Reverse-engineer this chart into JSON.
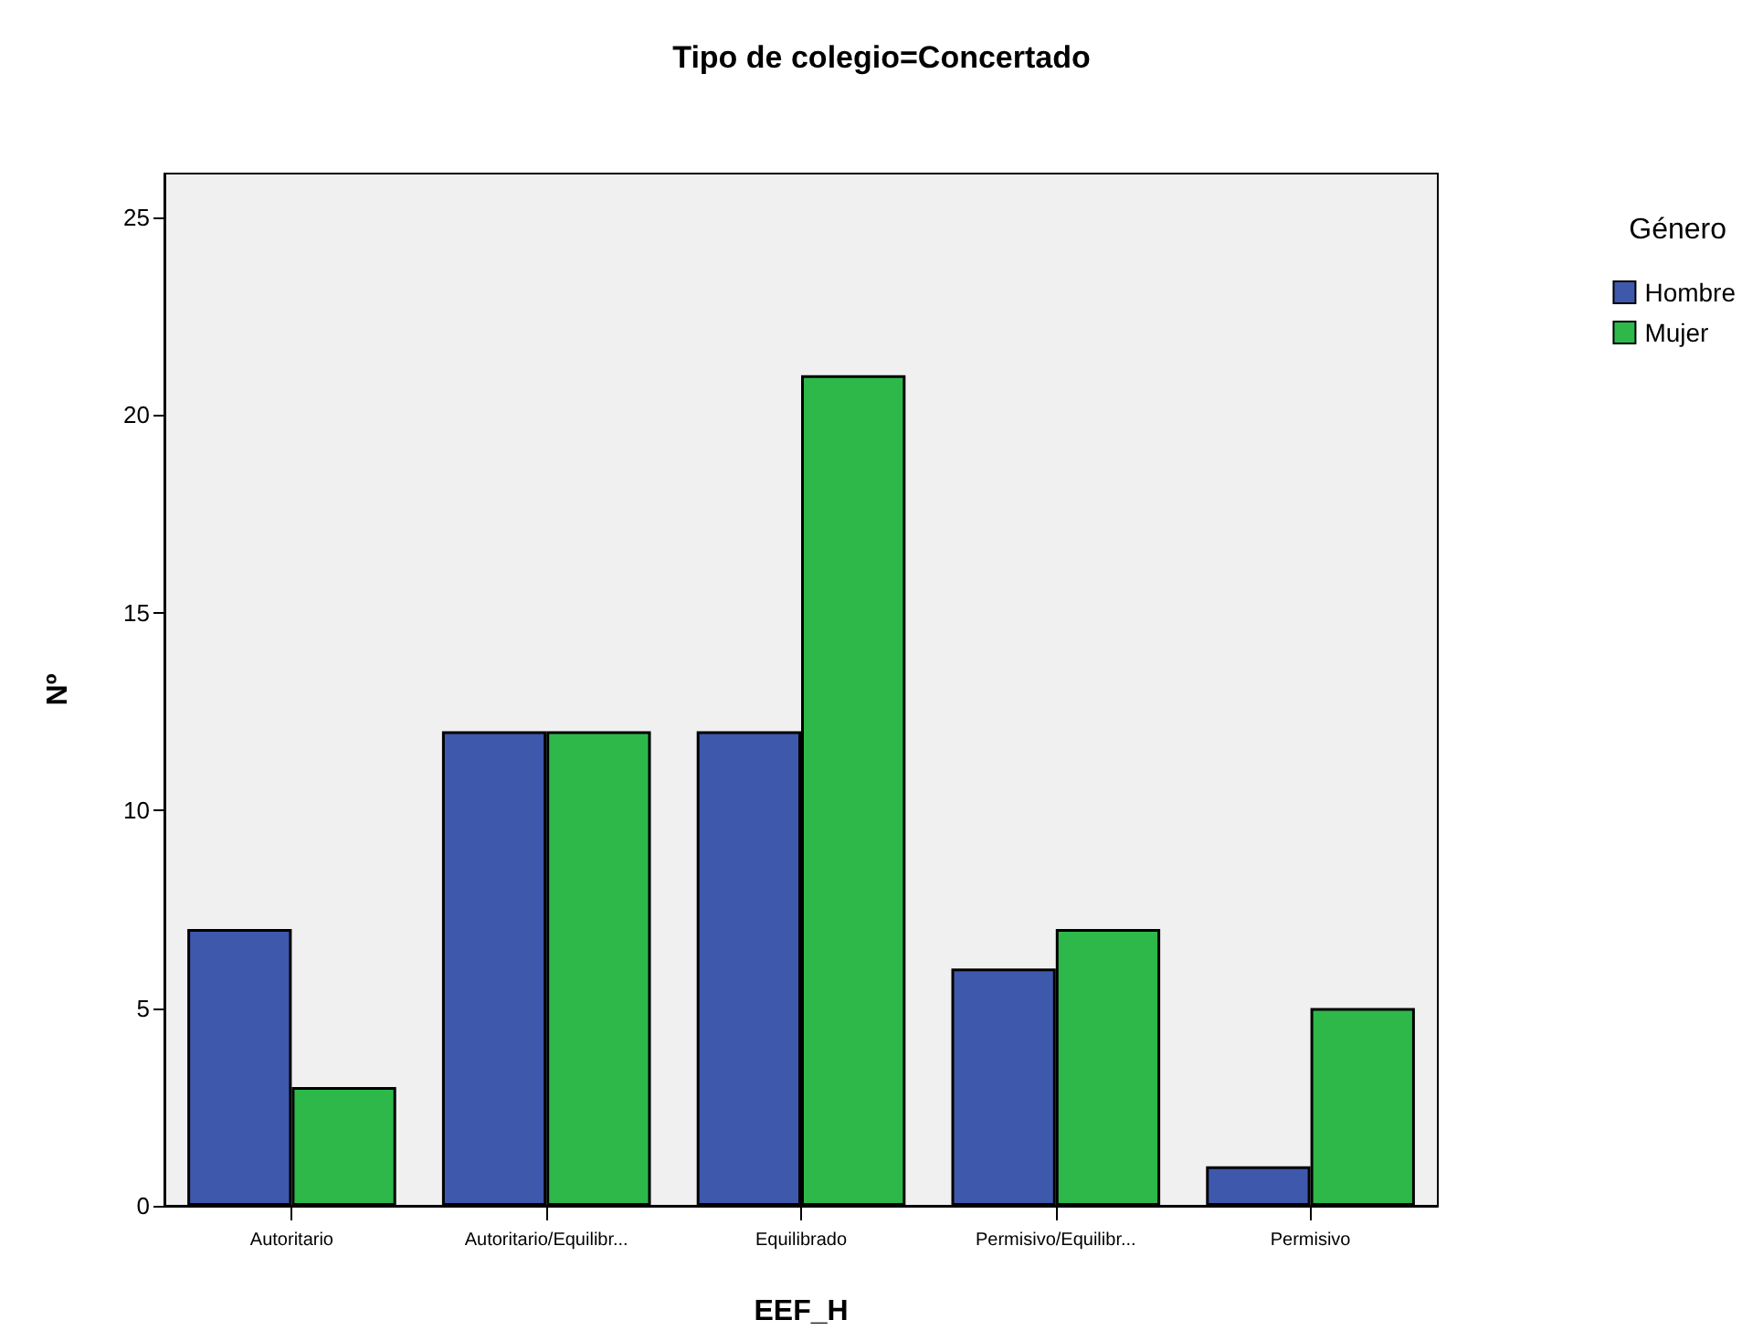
{
  "chart_data": {
    "type": "bar",
    "title": "Tipo de colegio=Concertado",
    "xlabel": "EEF_H",
    "ylabel": "Nº",
    "legend_title": "Género",
    "categories": [
      "Autoritario",
      "Autoritario/Equilibr...",
      "Equilibrado",
      "Permisivo/Equilibr...",
      "Permisivo"
    ],
    "series": [
      {
        "name": "Hombre",
        "color": "#3e58ac",
        "values": [
          7,
          12,
          12,
          6,
          1
        ]
      },
      {
        "name": "Mujer",
        "color": "#2eb84a",
        "values": [
          3,
          12,
          21,
          7,
          5
        ]
      }
    ],
    "ylim": [
      0,
      26.1
    ],
    "yticks": [
      0,
      5,
      10,
      15,
      20,
      25
    ],
    "grid": false,
    "legend": "right"
  }
}
